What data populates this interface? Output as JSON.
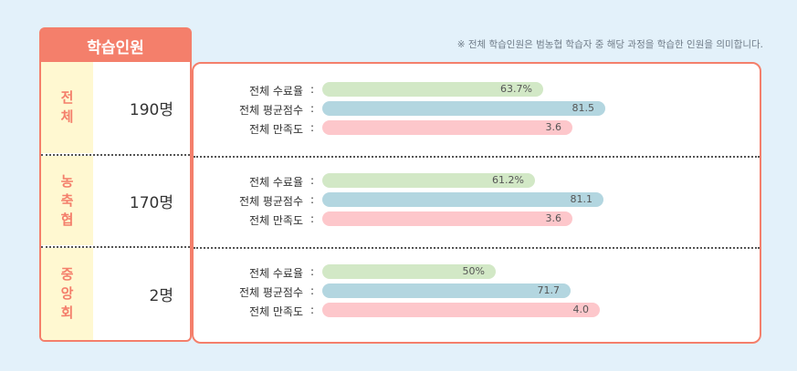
{
  "header_label": "학습인원",
  "note": "※ 전체 학습인원은 범농협 학습자 중 해당 과정을 학습한 인원을 의미합니다.",
  "metric_labels": [
    "전체 수료율",
    "전체 평균점수",
    "전체 만족도"
  ],
  "colon": ":",
  "colors": {
    "accent": "#f47f6b",
    "label_bg": "#fff8d1",
    "completion": "#d2e8c6",
    "score": "#b3d6e0",
    "satisfaction": "#fdc7cb"
  },
  "groups": [
    {
      "name": "전체",
      "count": "190명"
    },
    {
      "name": "농축협",
      "count": "170명"
    },
    {
      "name": "중앙회",
      "count": "2명"
    }
  ],
  "chart_data": {
    "type": "bar",
    "categories": [
      "전체",
      "농축협",
      "중앙회"
    ],
    "series": [
      {
        "name": "전체 수료율",
        "values": [
          63.7,
          61.2,
          50
        ],
        "labels": [
          "63.7%",
          "61.2%",
          "50%"
        ]
      },
      {
        "name": "전체 평균점수",
        "values": [
          81.5,
          81.1,
          71.7
        ],
        "labels": [
          "81.5",
          "81.1",
          "71.7"
        ]
      },
      {
        "name": "전체 만족도",
        "values": [
          3.6,
          3.6,
          4.0
        ],
        "labels": [
          "3.6",
          "3.6",
          "4.0"
        ]
      }
    ]
  }
}
